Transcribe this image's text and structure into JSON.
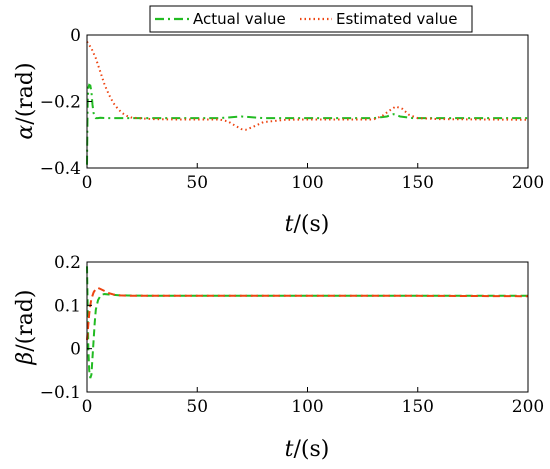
{
  "colors": {
    "actual": "#22bb22",
    "estimated": "#ee4411",
    "axis": "#000000",
    "background": "#ffffff"
  },
  "legend": {
    "placement": "top-center",
    "actual_label": "Actual value",
    "estimated_label": "Estimated value"
  },
  "chart_data": [
    {
      "type": "line",
      "ylabel_symbol": "α",
      "ylabel_unit": "/(rad)",
      "xlabel_symbol": "t",
      "xlabel_unit": "/(s)",
      "xlim": [
        0,
        200
      ],
      "ylim": [
        -0.4,
        0
      ],
      "xticks": [
        0,
        50,
        100,
        150,
        200
      ],
      "xtick_labels": [
        "0",
        "50",
        "100",
        "150",
        "200"
      ],
      "yticks": [
        -0.4,
        -0.2,
        0
      ],
      "ytick_labels": [
        "−0.4",
        "−0.2",
        "0"
      ],
      "grid": false,
      "series": [
        {
          "name": "Actual value",
          "style": "dash-dot",
          "x": [
            0,
            0.3,
            0.6,
            1,
            1.5,
            2,
            2.5,
            3,
            3.5,
            4,
            5,
            6,
            10,
            20,
            40,
            60,
            70,
            80,
            100,
            130,
            136,
            139,
            142,
            148,
            160,
            200
          ],
          "y": [
            -0.39,
            -0.2,
            -0.16,
            -0.15,
            -0.152,
            -0.17,
            -0.21,
            -0.235,
            -0.245,
            -0.25,
            -0.25,
            -0.249,
            -0.25,
            -0.25,
            -0.25,
            -0.25,
            -0.245,
            -0.25,
            -0.25,
            -0.25,
            -0.245,
            -0.238,
            -0.245,
            -0.25,
            -0.25,
            -0.25
          ]
        },
        {
          "name": "Estimated value",
          "style": "dotted",
          "x": [
            0,
            2,
            4,
            6,
            8,
            10,
            12,
            14,
            16,
            18,
            20,
            25,
            30,
            40,
            50,
            60,
            64,
            67,
            70,
            72,
            75,
            80,
            90,
            100,
            120,
            130,
            134,
            137,
            140,
            143,
            146,
            150,
            160,
            180,
            200
          ],
          "y": [
            -0.02,
            -0.04,
            -0.07,
            -0.11,
            -0.15,
            -0.18,
            -0.205,
            -0.222,
            -0.235,
            -0.243,
            -0.248,
            -0.251,
            -0.253,
            -0.254,
            -0.254,
            -0.254,
            -0.26,
            -0.272,
            -0.283,
            -0.285,
            -0.277,
            -0.262,
            -0.255,
            -0.254,
            -0.254,
            -0.254,
            -0.243,
            -0.228,
            -0.215,
            -0.222,
            -0.24,
            -0.25,
            -0.253,
            -0.254,
            -0.255
          ]
        }
      ]
    },
    {
      "type": "line",
      "ylabel_symbol": "β",
      "ylabel_unit": "/(rad)",
      "xlabel_symbol": "t",
      "xlabel_unit": "/(s)",
      "xlim": [
        0,
        200
      ],
      "ylim": [
        -0.1,
        0.2
      ],
      "xticks": [
        0,
        50,
        100,
        150,
        200
      ],
      "xtick_labels": [
        "0",
        "50",
        "100",
        "150",
        "200"
      ],
      "yticks": [
        -0.1,
        0,
        0.1,
        0.2
      ],
      "ytick_labels": [
        "−0.1",
        "0",
        "0.1",
        "0.2"
      ],
      "grid": false,
      "series": [
        {
          "name": "Actual value",
          "style": "dashed",
          "x": [
            0,
            0.3,
            0.6,
            1,
            1.5,
            2,
            2.5,
            3,
            3.5,
            4,
            5,
            6,
            7,
            8,
            10,
            15,
            30,
            60,
            100,
            150,
            200
          ],
          "y": [
            0.19,
            0.1,
            0.0,
            -0.05,
            -0.068,
            -0.06,
            -0.02,
            0.02,
            0.06,
            0.09,
            0.112,
            0.121,
            0.125,
            0.126,
            0.125,
            0.123,
            0.122,
            0.122,
            0.122,
            0.122,
            0.122
          ]
        },
        {
          "name": "Estimated value",
          "style": "dashed",
          "x": [
            0,
            0.5,
            1,
            1.5,
            2,
            3,
            4,
            5,
            6,
            8,
            10,
            12,
            15,
            20,
            30,
            60,
            100,
            150,
            200
          ],
          "y": [
            0.02,
            0.05,
            0.08,
            0.1,
            0.115,
            0.13,
            0.138,
            0.14,
            0.138,
            0.133,
            0.128,
            0.125,
            0.123,
            0.122,
            0.122,
            0.122,
            0.122,
            0.122,
            0.121
          ]
        }
      ]
    }
  ]
}
